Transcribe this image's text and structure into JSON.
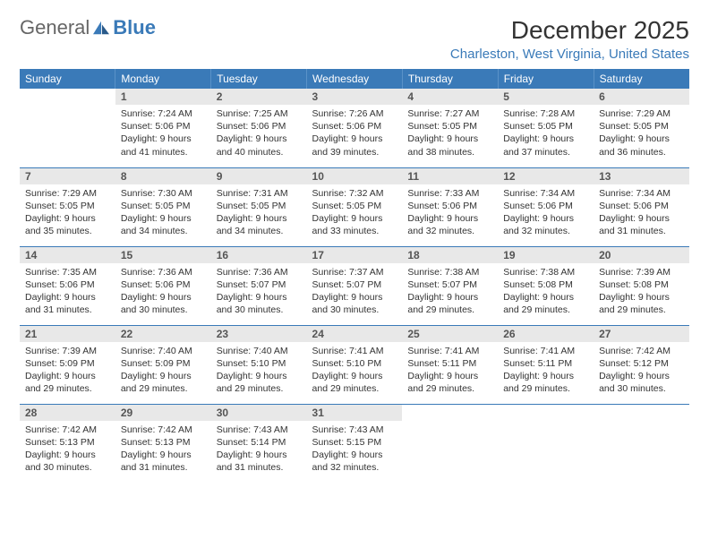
{
  "logo": {
    "text1": "General",
    "text2": "Blue"
  },
  "title": "December 2025",
  "location": "Charleston, West Virginia, United States",
  "colors": {
    "header_bg": "#3a7ab8",
    "header_text": "#ffffff",
    "row_divider": "#3a7ab8",
    "daynum_bg": "#e8e8e8",
    "location_color": "#3a7ab8"
  },
  "dayHeaders": [
    "Sunday",
    "Monday",
    "Tuesday",
    "Wednesday",
    "Thursday",
    "Friday",
    "Saturday"
  ],
  "weeks": [
    [
      {
        "num": "",
        "lines": []
      },
      {
        "num": "1",
        "lines": [
          "Sunrise: 7:24 AM",
          "Sunset: 5:06 PM",
          "Daylight: 9 hours and 41 minutes."
        ]
      },
      {
        "num": "2",
        "lines": [
          "Sunrise: 7:25 AM",
          "Sunset: 5:06 PM",
          "Daylight: 9 hours and 40 minutes."
        ]
      },
      {
        "num": "3",
        "lines": [
          "Sunrise: 7:26 AM",
          "Sunset: 5:06 PM",
          "Daylight: 9 hours and 39 minutes."
        ]
      },
      {
        "num": "4",
        "lines": [
          "Sunrise: 7:27 AM",
          "Sunset: 5:05 PM",
          "Daylight: 9 hours and 38 minutes."
        ]
      },
      {
        "num": "5",
        "lines": [
          "Sunrise: 7:28 AM",
          "Sunset: 5:05 PM",
          "Daylight: 9 hours and 37 minutes."
        ]
      },
      {
        "num": "6",
        "lines": [
          "Sunrise: 7:29 AM",
          "Sunset: 5:05 PM",
          "Daylight: 9 hours and 36 minutes."
        ]
      }
    ],
    [
      {
        "num": "7",
        "lines": [
          "Sunrise: 7:29 AM",
          "Sunset: 5:05 PM",
          "Daylight: 9 hours and 35 minutes."
        ]
      },
      {
        "num": "8",
        "lines": [
          "Sunrise: 7:30 AM",
          "Sunset: 5:05 PM",
          "Daylight: 9 hours and 34 minutes."
        ]
      },
      {
        "num": "9",
        "lines": [
          "Sunrise: 7:31 AM",
          "Sunset: 5:05 PM",
          "Daylight: 9 hours and 34 minutes."
        ]
      },
      {
        "num": "10",
        "lines": [
          "Sunrise: 7:32 AM",
          "Sunset: 5:05 PM",
          "Daylight: 9 hours and 33 minutes."
        ]
      },
      {
        "num": "11",
        "lines": [
          "Sunrise: 7:33 AM",
          "Sunset: 5:06 PM",
          "Daylight: 9 hours and 32 minutes."
        ]
      },
      {
        "num": "12",
        "lines": [
          "Sunrise: 7:34 AM",
          "Sunset: 5:06 PM",
          "Daylight: 9 hours and 32 minutes."
        ]
      },
      {
        "num": "13",
        "lines": [
          "Sunrise: 7:34 AM",
          "Sunset: 5:06 PM",
          "Daylight: 9 hours and 31 minutes."
        ]
      }
    ],
    [
      {
        "num": "14",
        "lines": [
          "Sunrise: 7:35 AM",
          "Sunset: 5:06 PM",
          "Daylight: 9 hours and 31 minutes."
        ]
      },
      {
        "num": "15",
        "lines": [
          "Sunrise: 7:36 AM",
          "Sunset: 5:06 PM",
          "Daylight: 9 hours and 30 minutes."
        ]
      },
      {
        "num": "16",
        "lines": [
          "Sunrise: 7:36 AM",
          "Sunset: 5:07 PM",
          "Daylight: 9 hours and 30 minutes."
        ]
      },
      {
        "num": "17",
        "lines": [
          "Sunrise: 7:37 AM",
          "Sunset: 5:07 PM",
          "Daylight: 9 hours and 30 minutes."
        ]
      },
      {
        "num": "18",
        "lines": [
          "Sunrise: 7:38 AM",
          "Sunset: 5:07 PM",
          "Daylight: 9 hours and 29 minutes."
        ]
      },
      {
        "num": "19",
        "lines": [
          "Sunrise: 7:38 AM",
          "Sunset: 5:08 PM",
          "Daylight: 9 hours and 29 minutes."
        ]
      },
      {
        "num": "20",
        "lines": [
          "Sunrise: 7:39 AM",
          "Sunset: 5:08 PM",
          "Daylight: 9 hours and 29 minutes."
        ]
      }
    ],
    [
      {
        "num": "21",
        "lines": [
          "Sunrise: 7:39 AM",
          "Sunset: 5:09 PM",
          "Daylight: 9 hours and 29 minutes."
        ]
      },
      {
        "num": "22",
        "lines": [
          "Sunrise: 7:40 AM",
          "Sunset: 5:09 PM",
          "Daylight: 9 hours and 29 minutes."
        ]
      },
      {
        "num": "23",
        "lines": [
          "Sunrise: 7:40 AM",
          "Sunset: 5:10 PM",
          "Daylight: 9 hours and 29 minutes."
        ]
      },
      {
        "num": "24",
        "lines": [
          "Sunrise: 7:41 AM",
          "Sunset: 5:10 PM",
          "Daylight: 9 hours and 29 minutes."
        ]
      },
      {
        "num": "25",
        "lines": [
          "Sunrise: 7:41 AM",
          "Sunset: 5:11 PM",
          "Daylight: 9 hours and 29 minutes."
        ]
      },
      {
        "num": "26",
        "lines": [
          "Sunrise: 7:41 AM",
          "Sunset: 5:11 PM",
          "Daylight: 9 hours and 29 minutes."
        ]
      },
      {
        "num": "27",
        "lines": [
          "Sunrise: 7:42 AM",
          "Sunset: 5:12 PM",
          "Daylight: 9 hours and 30 minutes."
        ]
      }
    ],
    [
      {
        "num": "28",
        "lines": [
          "Sunrise: 7:42 AM",
          "Sunset: 5:13 PM",
          "Daylight: 9 hours and 30 minutes."
        ]
      },
      {
        "num": "29",
        "lines": [
          "Sunrise: 7:42 AM",
          "Sunset: 5:13 PM",
          "Daylight: 9 hours and 31 minutes."
        ]
      },
      {
        "num": "30",
        "lines": [
          "Sunrise: 7:43 AM",
          "Sunset: 5:14 PM",
          "Daylight: 9 hours and 31 minutes."
        ]
      },
      {
        "num": "31",
        "lines": [
          "Sunrise: 7:43 AM",
          "Sunset: 5:15 PM",
          "Daylight: 9 hours and 32 minutes."
        ]
      },
      {
        "num": "",
        "lines": []
      },
      {
        "num": "",
        "lines": []
      },
      {
        "num": "",
        "lines": []
      }
    ]
  ]
}
